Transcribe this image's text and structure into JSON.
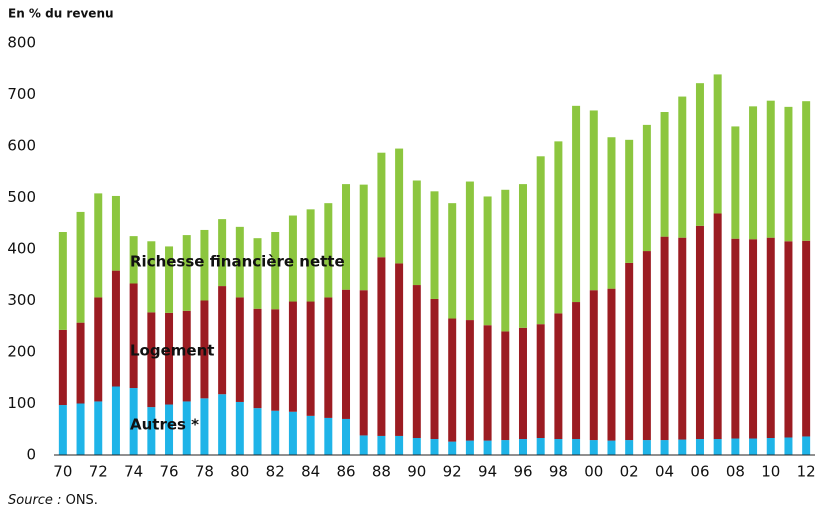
{
  "chart_data": {
    "type": "stacked-bar",
    "y_label": "En % du revenu",
    "categories": [
      "70",
      null,
      "72",
      null,
      "74",
      null,
      "76",
      null,
      "78",
      null,
      "80",
      null,
      "82",
      null,
      "84",
      null,
      "86",
      null,
      "88",
      null,
      "90",
      null,
      "92",
      null,
      "94",
      null,
      "96",
      null,
      "98",
      null,
      "00",
      null,
      "02",
      null,
      "04",
      null,
      "06",
      null,
      "08",
      null,
      "10",
      null,
      "12"
    ],
    "series": [
      {
        "name": "Autres *",
        "color": "#1fb4e8",
        "values": [
          97,
          100,
          104,
          133,
          130,
          93,
          98,
          104,
          110,
          118,
          103,
          91,
          86,
          84,
          76,
          72,
          70,
          38,
          37,
          37,
          33,
          31,
          26,
          28,
          28,
          29,
          31,
          33,
          31,
          31,
          29,
          28,
          29,
          29,
          29,
          30,
          31,
          31,
          32,
          32,
          33,
          34,
          36
        ]
      },
      {
        "name": "Logement",
        "color": "#9b1c22",
        "values": [
          146,
          157,
          202,
          225,
          203,
          184,
          178,
          176,
          190,
          210,
          203,
          193,
          197,
          214,
          222,
          234,
          251,
          282,
          347,
          335,
          297,
          272,
          239,
          234,
          224,
          211,
          216,
          221,
          244,
          266,
          291,
          295,
          344,
          367,
          395,
          392,
          414,
          438,
          388,
          387,
          389,
          381,
          380
        ]
      },
      {
        "name": "Richesse financière nette",
        "color": "#8cc63f",
        "values": [
          190,
          215,
          202,
          145,
          92,
          138,
          129,
          147,
          137,
          130,
          137,
          137,
          150,
          167,
          179,
          183,
          205,
          205,
          203,
          223,
          203,
          209,
          224,
          269,
          250,
          275,
          279,
          326,
          334,
          381,
          349,
          294,
          239,
          245,
          242,
          274,
          277,
          270,
          218,
          258,
          266,
          261,
          271
        ]
      }
    ],
    "ylim": [
      0,
      800
    ],
    "yticks": [
      0,
      100,
      200,
      300,
      400,
      500,
      600,
      700,
      800
    ],
    "source": {
      "label": "Source :",
      "text": "ONS."
    }
  }
}
